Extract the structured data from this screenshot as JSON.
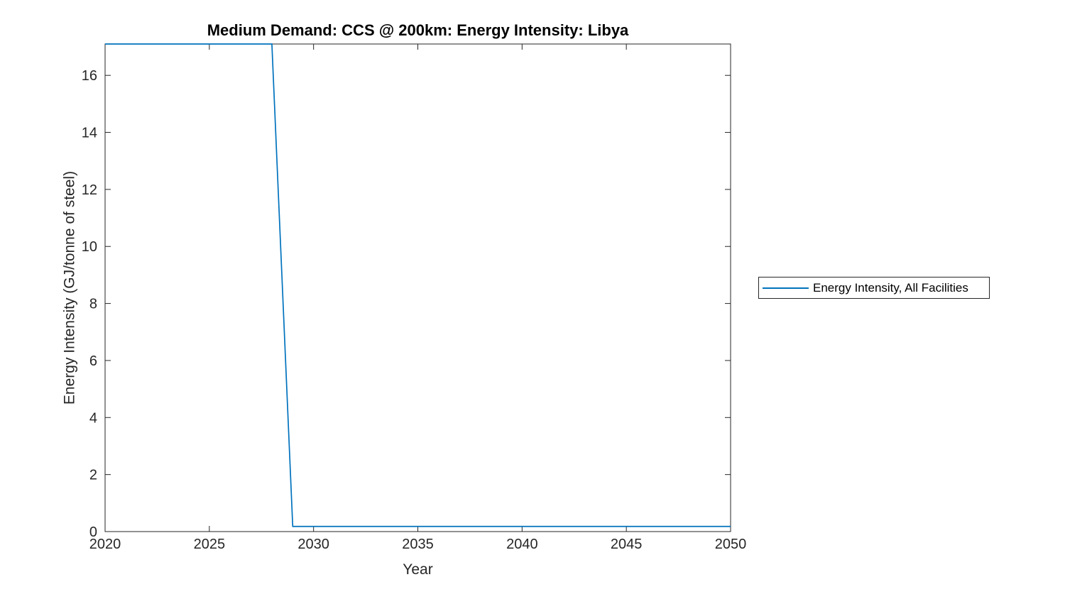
{
  "figure": {
    "background": "#ffffff"
  },
  "colors": {
    "line": "#0072BD",
    "axis": "#262626",
    "title": "#000000",
    "background": "#ffffff"
  },
  "chart_data": {
    "type": "line",
    "title": "Medium Demand: CCS @ 200km: Energy Intensity: Libya",
    "xlabel": "Year",
    "ylabel": "Energy Intensity (GJ/tonne of steel)",
    "xlim": [
      2020,
      2050
    ],
    "ylim": [
      0,
      17.1
    ],
    "xticks": [
      2020,
      2025,
      2030,
      2035,
      2040,
      2045,
      2050
    ],
    "yticks": [
      0,
      2,
      4,
      6,
      8,
      10,
      12,
      14,
      16
    ],
    "grid": false,
    "box": true,
    "tick_direction": "in",
    "legend": {
      "position": "right-outside",
      "entries": [
        {
          "label": "Energy Intensity, All Facilities",
          "color": "#0072BD"
        }
      ]
    },
    "series": [
      {
        "name": "Energy Intensity, All Facilities",
        "color": "#0072BD",
        "x": [
          2020,
          2021,
          2022,
          2023,
          2024,
          2025,
          2026,
          2027,
          2028,
          2029,
          2030,
          2031,
          2032,
          2033,
          2034,
          2035,
          2036,
          2037,
          2038,
          2039,
          2040,
          2041,
          2042,
          2043,
          2044,
          2045,
          2046,
          2047,
          2048,
          2049,
          2050
        ],
        "y": [
          17.1,
          17.1,
          17.1,
          17.1,
          17.1,
          17.1,
          17.1,
          17.1,
          17.1,
          0.18,
          0.18,
          0.18,
          0.18,
          0.18,
          0.18,
          0.18,
          0.18,
          0.18,
          0.18,
          0.18,
          0.18,
          0.18,
          0.18,
          0.18,
          0.18,
          0.18,
          0.18,
          0.18,
          0.18,
          0.18,
          0.18
        ]
      }
    ]
  }
}
